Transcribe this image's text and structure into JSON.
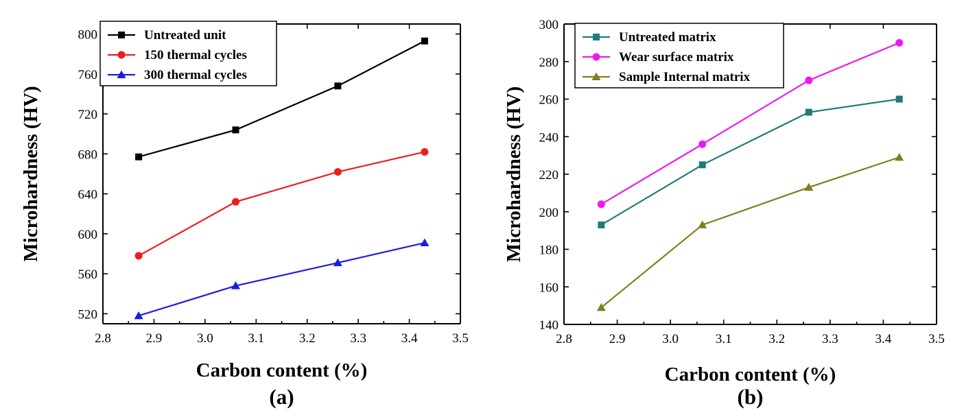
{
  "chart_data": [
    {
      "type": "line",
      "panel_label": "(a)",
      "xlabel": "Carbon content (%)",
      "ylabel": "Microhardness (HV)",
      "xlim": [
        2.8,
        3.5
      ],
      "ylim": [
        510,
        810
      ],
      "xticks": [
        "2.8",
        "2.9",
        "3.0",
        "3.1",
        "3.2",
        "3.3",
        "3.4",
        "3.5"
      ],
      "yticks": [
        "520",
        "560",
        "600",
        "640",
        "680",
        "720",
        "760",
        "800"
      ],
      "x": [
        2.87,
        3.06,
        3.26,
        3.43
      ],
      "legend_position": "top-left",
      "grid": false,
      "series": [
        {
          "name": "Untreated unit",
          "values": [
            677,
            704,
            748,
            793
          ],
          "color": "#000000",
          "marker": "square"
        },
        {
          "name": "150 thermal cycles",
          "values": [
            578,
            632,
            662,
            682
          ],
          "color": "#ee1c1c",
          "marker": "circle"
        },
        {
          "name": "300 thermal cycles",
          "values": [
            518,
            548,
            571,
            591
          ],
          "color": "#1c1cdd",
          "marker": "triangle"
        }
      ]
    },
    {
      "type": "line",
      "panel_label": "(b)",
      "xlabel": "Carbon content (%)",
      "ylabel": "Microhardness (HV)",
      "xlim": [
        2.8,
        3.5
      ],
      "ylim": [
        140,
        300
      ],
      "xticks": [
        "2.8",
        "2.9",
        "3.0",
        "3.1",
        "3.2",
        "3.3",
        "3.4",
        "3.5"
      ],
      "yticks": [
        "140",
        "160",
        "180",
        "200",
        "220",
        "240",
        "260",
        "280",
        "300"
      ],
      "x": [
        2.87,
        3.06,
        3.26,
        3.43
      ],
      "legend_position": "top-left",
      "grid": false,
      "series": [
        {
          "name": "Untreated matrix",
          "values": [
            193,
            225,
            253,
            260
          ],
          "color": "#1f7b7b",
          "marker": "square"
        },
        {
          "name": "Wear surface matrix",
          "values": [
            204,
            236,
            270,
            290
          ],
          "color": "#ee18ee",
          "marker": "circle"
        },
        {
          "name": "Sample Internal matrix",
          "values": [
            149,
            193,
            213,
            229
          ],
          "color": "#7f7f1c",
          "marker": "triangle"
        }
      ]
    }
  ]
}
